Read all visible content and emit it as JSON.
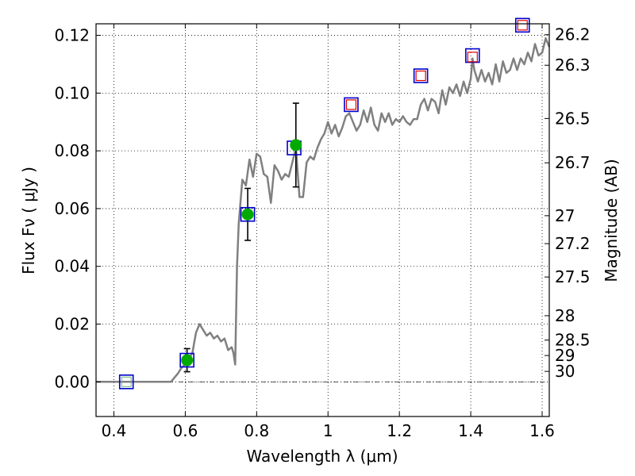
{
  "chart_data": {
    "type": "scatter",
    "xlabel": "Wavelength  λ (μm)",
    "ylabel": "Flux  Fν  ( μJy )",
    "ylabel_right": "Magnitude (AB)",
    "xlim": [
      0.35,
      1.62
    ],
    "ylim": [
      -0.012,
      0.124
    ],
    "grid": true,
    "grid_style": "dotted",
    "x_ticks": [
      0.4,
      0.6,
      0.8,
      1.0,
      1.2,
      1.4,
      1.6
    ],
    "x_tick_labels": [
      "0.4",
      "0.6",
      "0.8",
      "1",
      "1.2",
      "1.4",
      "1.6"
    ],
    "y_ticks": [
      0.0,
      0.02,
      0.04,
      0.06,
      0.08,
      0.1,
      0.12
    ],
    "y_tick_labels": [
      "0.00",
      "0.02",
      "0.04",
      "0.06",
      "0.08",
      "0.10",
      "0.12"
    ],
    "magnitude_ticks": [
      "26.2",
      "26.3",
      "26.5",
      "26.7",
      "27",
      "27.2",
      "27.5",
      "28",
      "28.5",
      "29",
      "30"
    ],
    "zero_line": true,
    "colors": {
      "model": "#808080",
      "observed": "#00aa00",
      "band_box": "#0000cc",
      "upper_limit": "#dd0000",
      "error_bar": "#000000"
    },
    "series": [
      {
        "type": "line",
        "x": [
          0.35,
          0.4,
          0.45,
          0.5,
          0.55,
          0.56,
          0.58,
          0.59,
          0.6,
          0.61,
          0.62,
          0.63,
          0.64,
          0.65,
          0.66,
          0.67,
          0.68,
          0.69,
          0.7,
          0.71,
          0.72,
          0.73,
          0.735,
          0.74,
          0.745,
          0.75,
          0.76,
          0.77,
          0.78,
          0.79,
          0.8,
          0.81,
          0.82,
          0.83,
          0.84,
          0.85,
          0.86,
          0.87,
          0.88,
          0.89,
          0.9,
          0.91,
          0.92,
          0.93,
          0.94,
          0.95,
          0.96,
          0.97,
          0.98,
          0.99,
          1.0,
          1.01,
          1.02,
          1.03,
          1.04,
          1.05,
          1.06,
          1.07,
          1.08,
          1.09,
          1.1,
          1.11,
          1.12,
          1.13,
          1.14,
          1.15,
          1.16,
          1.17,
          1.18,
          1.19,
          1.2,
          1.21,
          1.22,
          1.23,
          1.24,
          1.25,
          1.26,
          1.27,
          1.28,
          1.29,
          1.3,
          1.31,
          1.32,
          1.33,
          1.34,
          1.35,
          1.36,
          1.37,
          1.38,
          1.39,
          1.4,
          1.405,
          1.41,
          1.42,
          1.43,
          1.44,
          1.45,
          1.46,
          1.47,
          1.48,
          1.49,
          1.5,
          1.51,
          1.52,
          1.53,
          1.54,
          1.55,
          1.56,
          1.57,
          1.58,
          1.59,
          1.6,
          1.61,
          1.62
        ],
        "y": [
          0.0,
          0.0,
          0.0,
          0.0,
          0.0,
          0.0,
          0.003,
          0.005,
          0.006,
          0.008,
          0.01,
          0.017,
          0.02,
          0.018,
          0.016,
          0.017,
          0.015,
          0.016,
          0.014,
          0.015,
          0.011,
          0.012,
          0.01,
          0.006,
          0.04,
          0.055,
          0.07,
          0.068,
          0.077,
          0.071,
          0.079,
          0.078,
          0.072,
          0.071,
          0.062,
          0.075,
          0.073,
          0.07,
          0.072,
          0.071,
          0.076,
          0.081,
          0.064,
          0.064,
          0.076,
          0.078,
          0.077,
          0.081,
          0.084,
          0.086,
          0.09,
          0.086,
          0.089,
          0.085,
          0.088,
          0.092,
          0.093,
          0.09,
          0.087,
          0.089,
          0.094,
          0.09,
          0.095,
          0.089,
          0.087,
          0.093,
          0.09,
          0.093,
          0.089,
          0.091,
          0.09,
          0.092,
          0.09,
          0.089,
          0.091,
          0.091,
          0.096,
          0.098,
          0.094,
          0.098,
          0.097,
          0.093,
          0.101,
          0.096,
          0.102,
          0.1,
          0.103,
          0.099,
          0.104,
          0.1,
          0.105,
          0.112,
          0.108,
          0.104,
          0.108,
          0.104,
          0.107,
          0.103,
          0.11,
          0.104,
          0.111,
          0.107,
          0.108,
          0.112,
          0.108,
          0.112,
          0.11,
          0.114,
          0.111,
          0.117,
          0.113,
          0.114,
          0.119,
          0.116
        ],
        "name": ""
      }
    ],
    "detections": [
      {
        "x": 0.605,
        "y": 0.0075,
        "err_low": 0.0035,
        "err_high": 0.0115
      },
      {
        "x": 0.775,
        "y": 0.058,
        "err_low": 0.049,
        "err_high": 0.067
      },
      {
        "x": 0.91,
        "y": 0.082,
        "err_low": 0.0675,
        "err_high": 0.0965
      }
    ],
    "band_boxes": [
      {
        "x": 0.435,
        "y": 0.0
      },
      {
        "x": 0.605,
        "y": 0.0075
      },
      {
        "x": 0.775,
        "y": 0.058
      },
      {
        "x": 0.905,
        "y": 0.081
      },
      {
        "x": 1.065,
        "y": 0.096
      },
      {
        "x": 1.26,
        "y": 0.106
      },
      {
        "x": 1.405,
        "y": 0.113
      },
      {
        "x": 1.545,
        "y": 0.1235
      }
    ],
    "upper_limits": [
      {
        "x": 1.065,
        "y": 0.096
      },
      {
        "x": 1.26,
        "y": 0.106
      },
      {
        "x": 1.405,
        "y": 0.1125
      },
      {
        "x": 1.545,
        "y": 0.1235
      }
    ]
  }
}
